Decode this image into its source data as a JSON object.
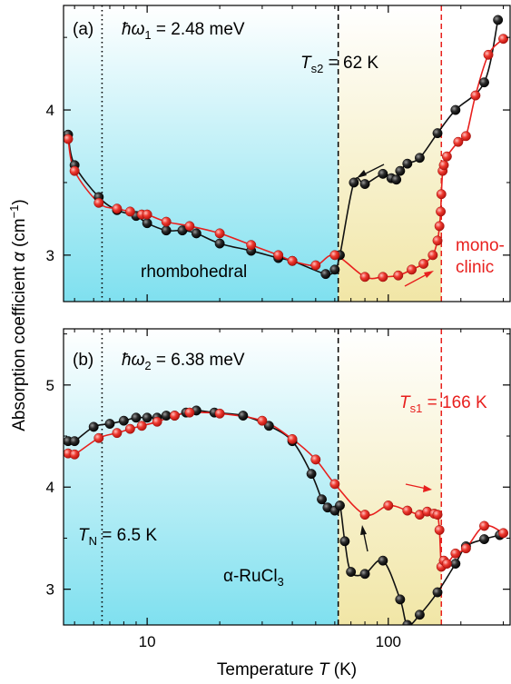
{
  "figure": {
    "xlabel": "Temperature",
    "xlabel_symbol": "T",
    "xlabel_unit": "(K)",
    "ylabel": "Absorption coefficient",
    "ylabel_symbol": "α",
    "ylabel_unit_open": "(cm",
    "ylabel_unit_exp": "−1",
    "ylabel_unit_close": ")",
    "compound_prefix": "α-RuCl",
    "compound_sub": "3",
    "tn_symbol": "T",
    "tn_sub": "N",
    "tn_value": " = 6.5 K",
    "ts2_symbol": "T",
    "ts2_sub": "s2",
    "ts2_value": " = 62 K",
    "ts1_symbol": "T",
    "ts1_sub": "s1",
    "ts1_value": " = 166 K",
    "phase_low": "rhombohedral",
    "phase_high_1": "mono-",
    "phase_high_2": "clinic",
    "panel_a_label": "(a)",
    "panel_b_label": "(b)",
    "omega1_prefix": "ħω",
    "omega1_sub": "1",
    "omega1_value": " = 2.48 meV",
    "omega2_prefix": "ħω",
    "omega2_sub": "2",
    "omega2_value": " = 6.38 meV"
  },
  "colors": {
    "cooling": "#111111",
    "warming": "#e8201e",
    "rhombohedral_region": "#7fe0ef",
    "mixed_region": "#f1e6a6",
    "tn_line": "#000000"
  },
  "chart_data": [
    {
      "type": "line",
      "panel": "(a)",
      "x_scale": "log",
      "xlim": [
        4.5,
        320
      ],
      "ylim": [
        2.68,
        4.72
      ],
      "xticks": [
        10,
        100
      ],
      "yticks": [
        3,
        4
      ],
      "vlines": {
        "T_N": 6.5,
        "T_s2": 62,
        "T_s1": 166
      },
      "series": [
        {
          "role": "cooling",
          "color": "#111111",
          "x": [
            4.7,
            5.0,
            6.3,
            7.5,
            9.0,
            10.0,
            12.0,
            14.0,
            16.0,
            20.0,
            27.0,
            35.0,
            40.0,
            55.0,
            60.0,
            63.0,
            72.0,
            80.0,
            95.0,
            103.0,
            108.0,
            112.0,
            120.0,
            135.0,
            160.0,
            190.0,
            250.0,
            285.0
          ],
          "y": [
            3.83,
            3.62,
            3.4,
            3.31,
            3.27,
            3.22,
            3.17,
            3.17,
            3.15,
            3.08,
            3.03,
            2.98,
            2.96,
            2.87,
            2.9,
            3.0,
            3.5,
            3.49,
            3.56,
            3.53,
            3.52,
            3.58,
            3.63,
            3.67,
            3.84,
            4.0,
            4.19,
            4.62
          ]
        },
        {
          "role": "warming",
          "color": "#e8201e",
          "x": [
            4.7,
            5.0,
            6.3,
            7.5,
            8.5,
            9.5,
            10.0,
            12.0,
            15.0,
            20.0,
            27.0,
            35.0,
            40.0,
            50.0,
            60.0,
            80.0,
            95.0,
            110.0,
            125.0,
            140.0,
            153.0,
            160.0,
            163.0,
            165.0,
            166.0,
            168.0,
            170.0,
            175.0,
            195.0,
            210.0,
            230.0,
            260.0,
            300.0
          ],
          "y": [
            3.8,
            3.58,
            3.36,
            3.32,
            3.3,
            3.28,
            3.28,
            3.23,
            3.2,
            3.15,
            3.07,
            3.0,
            2.96,
            2.93,
            3.0,
            2.85,
            2.85,
            2.86,
            2.9,
            2.94,
            3.0,
            3.1,
            3.2,
            3.3,
            3.42,
            3.58,
            3.62,
            3.68,
            3.78,
            3.82,
            4.1,
            4.38,
            4.49
          ]
        }
      ]
    },
    {
      "type": "line",
      "panel": "(b)",
      "x_scale": "log",
      "xlim": [
        4.5,
        320
      ],
      "ylim": [
        2.65,
        5.55
      ],
      "xticks": [
        10,
        100
      ],
      "yticks": [
        3,
        4,
        5
      ],
      "vlines": {
        "T_N": 6.5,
        "T_s2": 62,
        "T_s1": 166
      },
      "series": [
        {
          "role": "cooling",
          "color": "#111111",
          "x": [
            4.7,
            5.0,
            6.0,
            7.0,
            8.0,
            9.0,
            10.0,
            11.0,
            12.0,
            13.0,
            14.5,
            16.0,
            19.0,
            25.0,
            32.0,
            40.0,
            48.0,
            53.0,
            56.0,
            60.0,
            63.0,
            66.0,
            70.0,
            80.0,
            95.0,
            112.0,
            120.0,
            135.0,
            160.0,
            190.0,
            210.0,
            250.0,
            290.0
          ],
          "y": [
            4.45,
            4.45,
            4.59,
            4.62,
            4.65,
            4.68,
            4.68,
            4.68,
            4.7,
            4.7,
            4.73,
            4.75,
            4.73,
            4.7,
            4.6,
            4.45,
            4.13,
            3.88,
            3.8,
            3.77,
            3.82,
            3.47,
            3.17,
            3.15,
            3.28,
            2.9,
            2.65,
            2.75,
            2.97,
            3.25,
            3.42,
            3.49,
            3.53
          ]
        },
        {
          "role": "warming",
          "color": "#e8201e",
          "x": [
            4.7,
            5.0,
            6.3,
            7.5,
            8.5,
            9.5,
            11.0,
            13.0,
            15.0,
            20.0,
            30.0,
            40.0,
            50.0,
            60.0,
            80.0,
            100.0,
            120.0,
            135.0,
            145.0,
            155.0,
            160.0,
            163.0,
            166.0,
            170.0,
            175.0,
            190.0,
            210.0,
            250.0,
            300.0
          ],
          "y": [
            4.33,
            4.32,
            4.48,
            4.53,
            4.57,
            4.6,
            4.64,
            4.7,
            4.73,
            4.72,
            4.65,
            4.47,
            4.27,
            4.03,
            3.73,
            3.82,
            3.77,
            3.73,
            3.76,
            3.74,
            3.73,
            3.58,
            3.22,
            3.28,
            3.25,
            3.35,
            3.4,
            3.62,
            3.55
          ]
        }
      ]
    }
  ]
}
